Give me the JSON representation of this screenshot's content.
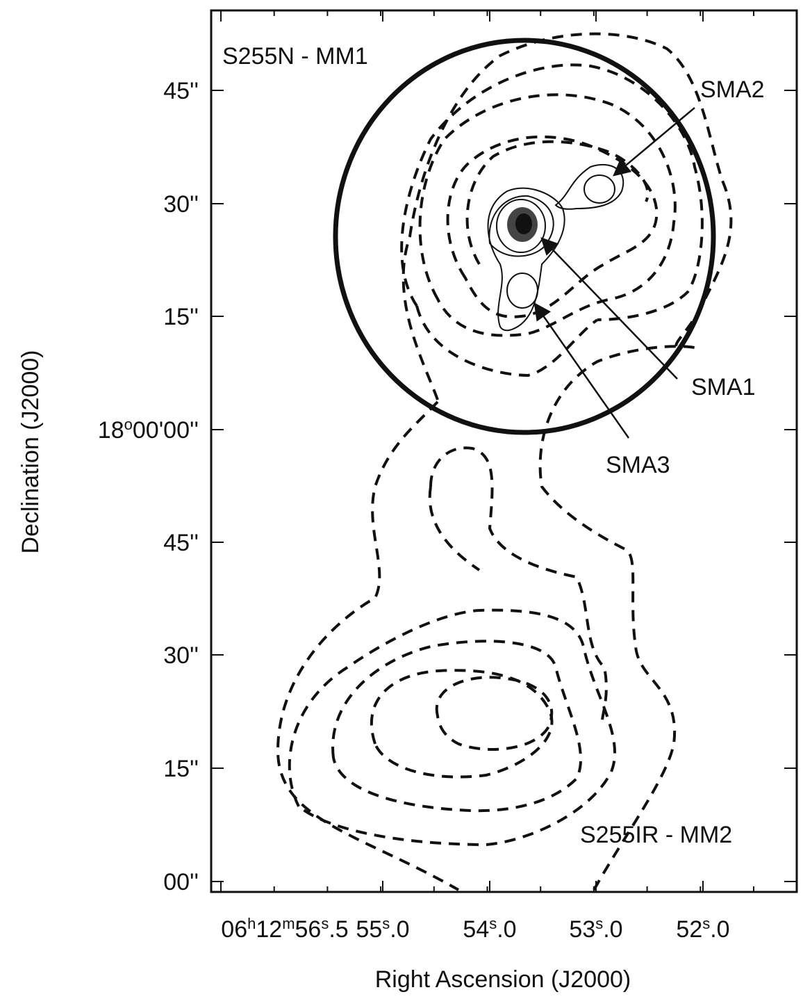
{
  "figure": {
    "x_axis": {
      "label": "Right Ascension (J2000)",
      "ticks": [
        [
          "06",
          "h",
          "12",
          "m",
          "56",
          "s",
          ".5"
        ],
        [
          "55",
          "s",
          ".0"
        ],
        [
          "54",
          "s",
          ".0"
        ],
        [
          "53",
          "s",
          ".0"
        ],
        [
          "52",
          "s",
          ".0"
        ]
      ]
    },
    "y_axis": {
      "label": "Declination (J2000)",
      "ticks": [
        [
          "45''"
        ],
        [
          "30''"
        ],
        [
          "15''"
        ],
        [
          "18",
          "o",
          "00'00''"
        ],
        [
          "45''"
        ],
        [
          "30''"
        ],
        [
          "15''"
        ],
        [
          "00''"
        ]
      ]
    },
    "annotations": [
      "S255N - MM1",
      "SMA2",
      "SMA1",
      "SMA3",
      "S255IR - MM2"
    ]
  }
}
